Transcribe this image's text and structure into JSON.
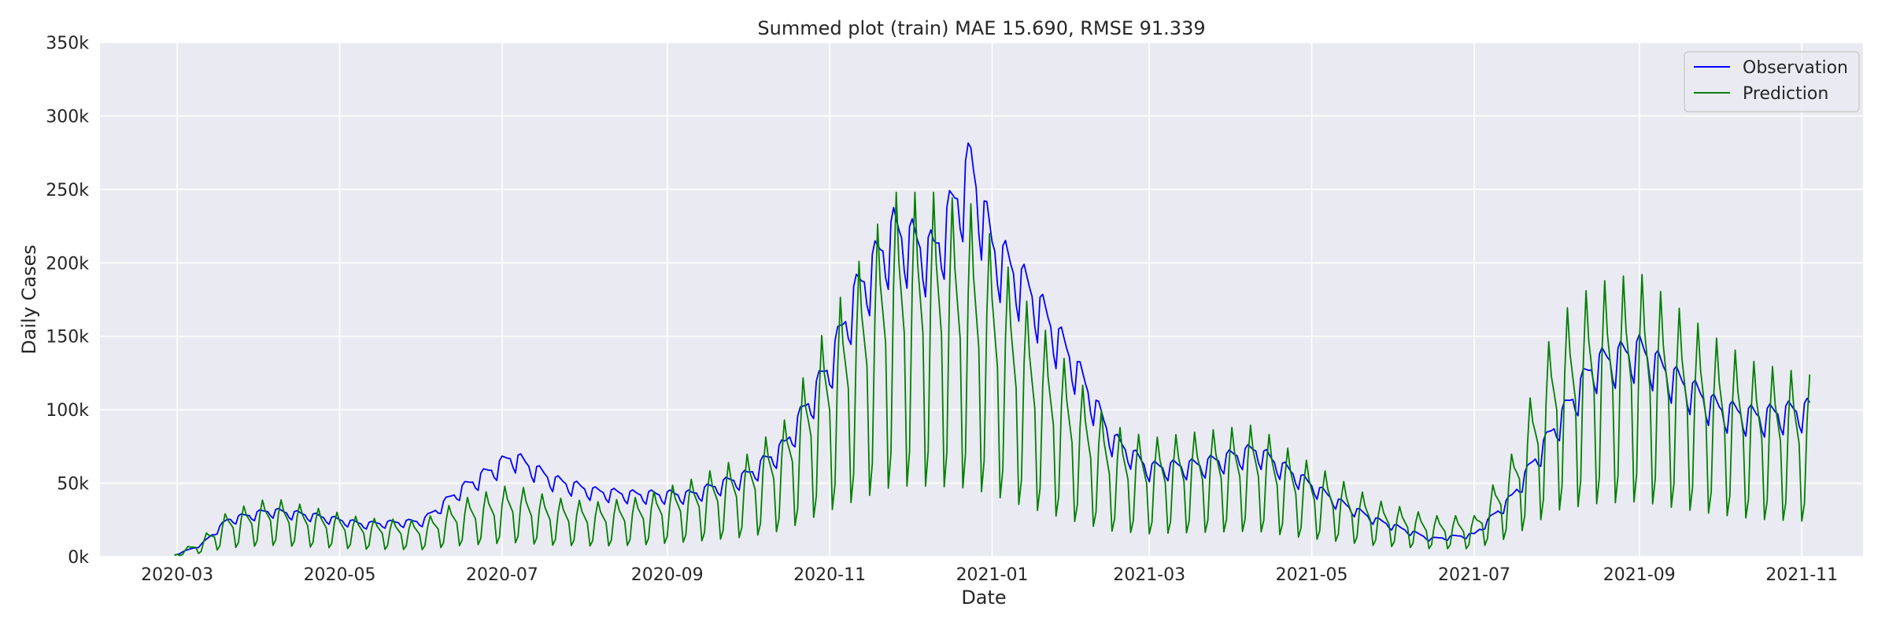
{
  "chart_data": {
    "type": "line",
    "title": "Summed plot (train) MAE 15.690, RMSE 91.339",
    "xlabel": "Date",
    "ylabel": "Daily Cases",
    "x_start": "2020-02-29",
    "x_end": "2021-11-04",
    "xlim": [
      "2020-02-01",
      "2021-11-24"
    ],
    "ylim": [
      0,
      350000
    ],
    "x_ticks": [
      "2020-03-01",
      "2020-05-01",
      "2020-07-01",
      "2020-09-01",
      "2020-11-01",
      "2021-01-01",
      "2021-03-01",
      "2021-05-01",
      "2021-07-01",
      "2021-09-01",
      "2021-11-01"
    ],
    "x_tick_labels": [
      "2020-03",
      "2020-05",
      "2020-07",
      "2020-09",
      "2020-11",
      "2021-01",
      "2021-03",
      "2021-05",
      "2021-07",
      "2021-09",
      "2021-11"
    ],
    "y_ticks": [
      0,
      50000,
      100000,
      150000,
      200000,
      250000,
      300000,
      350000
    ],
    "y_tick_labels": [
      "0k",
      "50k",
      "100k",
      "150k",
      "200k",
      "250k",
      "300k",
      "350k"
    ],
    "grid": true,
    "legend_position": "top-right",
    "background": "#eaeaf2",
    "series": [
      {
        "name": "Observation",
        "color": "#0000ff",
        "weekly_pattern": [
          0.85,
          1.05,
          1.08,
          1.05,
          1.02,
          1.0,
          0.9
        ],
        "trend_dates": [
          "2020-02-29",
          "2020-03-10",
          "2020-03-20",
          "2020-04-05",
          "2020-04-20",
          "2020-05-10",
          "2020-06-01",
          "2020-06-15",
          "2020-07-05",
          "2020-07-20",
          "2020-08-05",
          "2020-08-20",
          "2020-09-10",
          "2020-10-01",
          "2020-10-15",
          "2020-11-01",
          "2020-11-10",
          "2020-11-25",
          "2020-12-10",
          "2020-12-24",
          "2021-01-01",
          "2021-01-15",
          "2021-02-01",
          "2021-02-15",
          "2021-03-01",
          "2021-03-20",
          "2021-04-10",
          "2021-04-25",
          "2021-05-10",
          "2021-05-25",
          "2021-06-15",
          "2021-07-01",
          "2021-07-15",
          "2021-08-01",
          "2021-08-15",
          "2021-09-01",
          "2021-09-15",
          "2021-10-01",
          "2021-10-15",
          "2021-11-04"
        ],
        "trend_values": [
          1000,
          8000,
          25000,
          31000,
          28000,
          22000,
          24000,
          45000,
          68000,
          52000,
          44000,
          42000,
          42000,
          55000,
          75000,
          130000,
          175000,
          220000,
          205000,
          265000,
          210000,
          180000,
          130000,
          80000,
          60000,
          62000,
          72000,
          55000,
          38000,
          25000,
          12000,
          15000,
          40000,
          90000,
          130000,
          140000,
          120000,
          100000,
          95000,
          100000
        ]
      },
      {
        "name": "Prediction",
        "color": "#008000",
        "weekly_pattern": [
          0.3,
          0.45,
          1.15,
          1.55,
          1.25,
          1.1,
          0.95
        ],
        "trend_dates": [
          "2020-02-29",
          "2020-03-10",
          "2020-03-20",
          "2020-04-05",
          "2020-04-20",
          "2020-05-10",
          "2020-06-01",
          "2020-06-15",
          "2020-07-05",
          "2020-07-20",
          "2020-08-05",
          "2020-08-20",
          "2020-09-10",
          "2020-10-01",
          "2020-10-15",
          "2020-11-01",
          "2020-11-10",
          "2020-11-25",
          "2020-12-10",
          "2020-12-24",
          "2021-01-01",
          "2021-01-15",
          "2021-02-01",
          "2021-02-15",
          "2021-03-01",
          "2021-03-20",
          "2021-04-10",
          "2021-04-25",
          "2021-05-10",
          "2021-05-25",
          "2021-06-15",
          "2021-07-01",
          "2021-07-15",
          "2021-08-01",
          "2021-08-15",
          "2021-09-01",
          "2021-09-15",
          "2021-10-01",
          "2021-10-15",
          "2021-11-04"
        ],
        "trend_values": [
          1000,
          8000,
          20000,
          26000,
          22000,
          17000,
          16000,
          25000,
          32000,
          26000,
          24000,
          26000,
          34000,
          45000,
          60000,
          105000,
          125000,
          160000,
          160000,
          155000,
          140000,
          110000,
          80000,
          58000,
          52000,
          55000,
          58000,
          45000,
          35000,
          25000,
          18000,
          18000,
          45000,
          105000,
          120000,
          125000,
          110000,
          95000,
          85000,
          80000
        ]
      }
    ]
  }
}
